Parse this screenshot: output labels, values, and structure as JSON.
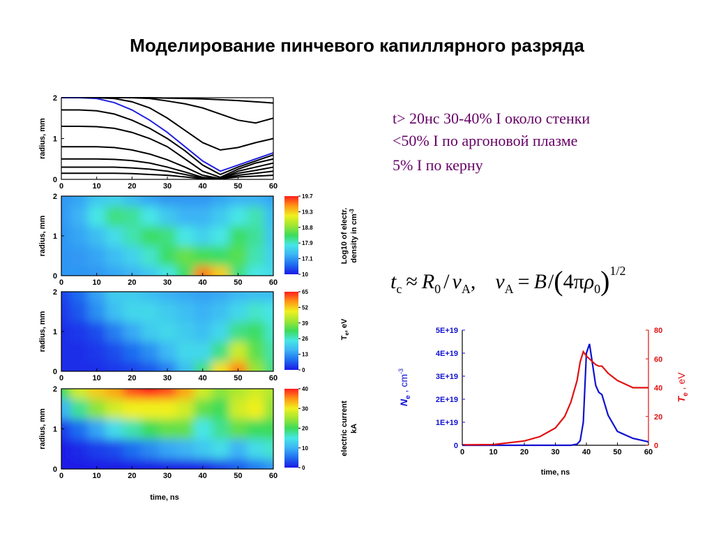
{
  "slide": {
    "title": "Моделирование пинчевого капиллярного разряда",
    "notes": [
      "t> 20нс  30-40% I  около стенки",
      "<50% I по аргоновой плазме",
      "5% I  по керну"
    ],
    "formula": [
      "t",
      "c",
      "≈",
      "R",
      "0",
      "/",
      "v",
      "A",
      ",",
      "v",
      "A",
      "=",
      "B",
      "/",
      "(",
      "4π",
      "ρ",
      "0",
      ")",
      "1/2"
    ]
  },
  "chart_data": [
    {
      "type": "line",
      "x": [
        0,
        5,
        10,
        15,
        20,
        25,
        30,
        35,
        40,
        45,
        50,
        55,
        60
      ],
      "xlim": [
        0,
        60
      ],
      "xticks": [
        0,
        10,
        20,
        30,
        40,
        50,
        60
      ],
      "ylim": [
        0,
        2
      ],
      "yticks": [
        0,
        1,
        2
      ],
      "ylabel": "radius, mm",
      "series": [
        {
          "color": "#000000",
          "values": [
            2,
            2,
            2,
            2,
            2,
            2,
            1.99,
            1.98,
            1.97,
            1.95,
            1.93,
            1.9,
            1.87
          ]
        },
        {
          "color": "#000000",
          "values": [
            2,
            2,
            2,
            2,
            2,
            1.98,
            1.92,
            1.85,
            1.75,
            1.6,
            1.45,
            1.38,
            1.5
          ]
        },
        {
          "color": "#000000",
          "values": [
            2,
            2,
            2,
            1.98,
            1.9,
            1.75,
            1.5,
            1.2,
            0.9,
            0.72,
            0.78,
            0.9,
            1.0
          ]
        },
        {
          "color": "#2020e0",
          "values": [
            2,
            2,
            1.98,
            1.88,
            1.7,
            1.45,
            1.15,
            0.8,
            0.45,
            0.2,
            0.35,
            0.5,
            0.65
          ]
        },
        {
          "color": "#000000",
          "values": [
            1.7,
            1.7,
            1.68,
            1.6,
            1.45,
            1.25,
            1.0,
            0.7,
            0.35,
            0.12,
            0.3,
            0.45,
            0.6
          ]
        },
        {
          "color": "#000000",
          "values": [
            1.3,
            1.3,
            1.29,
            1.25,
            1.15,
            1.0,
            0.8,
            0.5,
            0.2,
            0.05,
            0.25,
            0.4,
            0.5
          ]
        },
        {
          "color": "#000000",
          "values": [
            0.8,
            0.8,
            0.8,
            0.78,
            0.72,
            0.62,
            0.48,
            0.3,
            0.1,
            0.02,
            0.2,
            0.3,
            0.4
          ]
        },
        {
          "color": "#000000",
          "values": [
            0.5,
            0.5,
            0.5,
            0.49,
            0.46,
            0.4,
            0.3,
            0.18,
            0.05,
            0.02,
            0.15,
            0.22,
            0.3
          ]
        },
        {
          "color": "#000000",
          "values": [
            0.3,
            0.3,
            0.3,
            0.3,
            0.28,
            0.25,
            0.2,
            0.12,
            0.03,
            0.01,
            0.1,
            0.15,
            0.2
          ]
        },
        {
          "color": "#000000",
          "values": [
            0.15,
            0.15,
            0.15,
            0.15,
            0.14,
            0.12,
            0.1,
            0.06,
            0.01,
            0.01,
            0.06,
            0.08,
            0.1
          ]
        }
      ]
    },
    {
      "type": "heatmap",
      "x": [
        0,
        5,
        10,
        15,
        20,
        25,
        30,
        35,
        40,
        45,
        50,
        55,
        60
      ],
      "y": [
        0,
        0.5,
        1,
        1.5,
        2
      ],
      "z": [
        [
          17.0,
          17.0,
          17.1,
          17.2,
          17.3,
          17.5,
          17.8,
          18.3,
          19.5,
          19.3,
          18.2,
          17.8,
          17.7
        ],
        [
          17.0,
          17.1,
          17.2,
          17.4,
          17.6,
          17.9,
          18.3,
          18.6,
          18.4,
          18.3,
          18.5,
          18.0,
          17.6
        ],
        [
          17.0,
          17.2,
          17.4,
          17.7,
          18.0,
          18.3,
          18.2,
          17.8,
          17.6,
          17.8,
          18.3,
          18.1,
          17.5
        ],
        [
          17.1,
          17.3,
          17.8,
          18.2,
          18.1,
          17.8,
          17.5,
          17.3,
          17.3,
          17.5,
          17.8,
          18.0,
          17.4
        ],
        [
          17.1,
          17.2,
          17.5,
          17.6,
          17.4,
          17.2,
          17.1,
          17.1,
          17.1,
          17.2,
          17.3,
          17.3,
          17.2
        ]
      ],
      "xlim": [
        0,
        60
      ],
      "xticks": [
        0,
        10,
        20,
        30,
        40,
        50,
        60
      ],
      "ylim": [
        0,
        2
      ],
      "yticks": [
        0,
        1,
        2
      ],
      "ylabel": "radius, mm",
      "levels": [
        10,
        17.1,
        17.9,
        18.8,
        19.3,
        19.7
      ],
      "colors": [
        "#1a1ae6",
        "#1e6ef0",
        "#3cb4f5",
        "#46e6e6",
        "#3cdc5a",
        "#a0e632",
        "#f0f01e",
        "#ff9614",
        "#ff1e1e"
      ],
      "colorbar_label": [
        "Log10 of electr.",
        "density in cm",
        "-3"
      ]
    },
    {
      "type": "heatmap",
      "x": [
        0,
        5,
        10,
        15,
        20,
        25,
        30,
        35,
        40,
        45,
        50,
        55,
        60
      ],
      "y": [
        0,
        0.5,
        1,
        1.5,
        2
      ],
      "z": [
        [
          2,
          2,
          2,
          3,
          4,
          6,
          10,
          18,
          30,
          50,
          58,
          40,
          30
        ],
        [
          2,
          2,
          3,
          5,
          8,
          12,
          17,
          22,
          22,
          30,
          45,
          35,
          28
        ],
        [
          2,
          3,
          5,
          10,
          15,
          20,
          22,
          20,
          18,
          22,
          30,
          32,
          26
        ],
        [
          3,
          6,
          12,
          18,
          22,
          22,
          20,
          18,
          16,
          18,
          22,
          26,
          24
        ],
        [
          4,
          8,
          14,
          20,
          20,
          18,
          16,
          15,
          14,
          15,
          17,
          18,
          18
        ]
      ],
      "xlim": [
        0,
        60
      ],
      "xticks": [
        0,
        10,
        20,
        30,
        40,
        50,
        60
      ],
      "ylim": [
        0,
        2
      ],
      "yticks": [
        0,
        1,
        2
      ],
      "ylabel": "radius, mm",
      "levels": [
        0,
        13,
        26,
        39,
        52,
        65
      ],
      "colors": [
        "#1a1ae6",
        "#1e6ef0",
        "#3cb4f5",
        "#46e6e6",
        "#3cdc5a",
        "#a0e632",
        "#f0f01e",
        "#ff9614",
        "#ff1e1e"
      ],
      "colorbar_label": [
        "T",
        "e",
        ", eV"
      ]
    },
    {
      "type": "heatmap",
      "x": [
        0,
        5,
        10,
        15,
        20,
        25,
        30,
        35,
        40,
        45,
        50,
        55,
        60
      ],
      "y": [
        0,
        0.5,
        1,
        1.5,
        2
      ],
      "z": [
        [
          0,
          0,
          0,
          0,
          0,
          0,
          0,
          0,
          0,
          2,
          4,
          6,
          8
        ],
        [
          0,
          1,
          2,
          3,
          5,
          7,
          9,
          10,
          12,
          14,
          10,
          14,
          16
        ],
        [
          2,
          5,
          9,
          14,
          17,
          20,
          22,
          22,
          15,
          18,
          22,
          20,
          20
        ],
        [
          10,
          18,
          24,
          28,
          30,
          30,
          30,
          28,
          22,
          20,
          28,
          30,
          24
        ],
        [
          20,
          28,
          32,
          34,
          38,
          40,
          38,
          34,
          28,
          24,
          26,
          28,
          26
        ]
      ],
      "xlim": [
        0,
        60
      ],
      "xticks": [
        0,
        10,
        20,
        30,
        40,
        50,
        60
      ],
      "ylim": [
        0,
        2
      ],
      "yticks": [
        0,
        1,
        2
      ],
      "ylabel": "radius, mm",
      "xlabel": "time, ns",
      "levels": [
        0,
        10,
        20,
        30,
        40
      ],
      "colors": [
        "#1a1ae6",
        "#1e6ef0",
        "#3cb4f5",
        "#46e6e6",
        "#3cdc5a",
        "#a0e632",
        "#f0f01e",
        "#ff9614",
        "#ff1e1e"
      ],
      "colorbar_label": [
        "electric current",
        "kA"
      ]
    },
    {
      "type": "dual_line",
      "x": [
        0,
        10,
        20,
        25,
        30,
        33,
        35,
        37,
        38,
        39,
        40,
        41,
        42,
        43,
        44,
        45,
        47,
        50,
        55,
        60
      ],
      "xlim": [
        0,
        60
      ],
      "xticks": [
        0,
        10,
        20,
        30,
        40,
        50,
        60
      ],
      "xlabel": "time, ns",
      "ylim": [
        0,
        5e+19
      ],
      "yticks": [
        0,
        {
          "value": 1e+19,
          "label": "1E+19"
        },
        {
          "value": 2e+19,
          "label": "2E+19"
        },
        {
          "value": 3e+19,
          "label": "3E+19"
        },
        {
          "value": 4e+19,
          "label": "4E+19"
        },
        {
          "value": 5e+19,
          "label": "5E+19"
        }
      ],
      "y2lim": [
        0,
        80
      ],
      "y2ticks": [
        0,
        20,
        40,
        60,
        80
      ],
      "ylabel": [
        "N",
        "e",
        " , cm",
        "-3"
      ],
      "y2label": [
        "T",
        "e",
        " , eV"
      ],
      "series": [
        {
          "color": "#1010d0",
          "values": [
            0,
            0,
            0,
            0,
            0,
            0,
            0,
            5e+17,
            2e+18,
            1e+19,
            4e+19,
            4.4e+19,
            3.5e+19,
            2.6e+19,
            2.3e+19,
            2.2e+19,
            1.3e+19,
            6e+18,
            3e+18,
            1.5e+18
          ]
        },
        {
          "color": "#e01010",
          "axis": "y2",
          "values": [
            0.3,
            0.5,
            3,
            6,
            12,
            20,
            30,
            45,
            58,
            65,
            62,
            60,
            58,
            56,
            55,
            55,
            50,
            45,
            40,
            40
          ]
        }
      ]
    }
  ]
}
